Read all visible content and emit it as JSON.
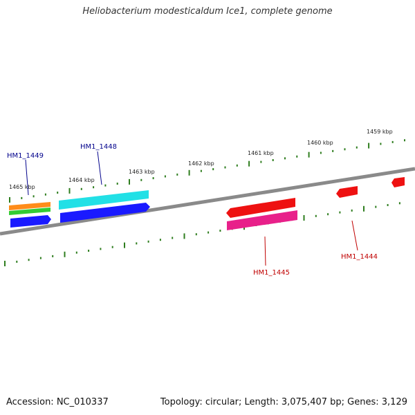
{
  "title": "Heliobacterium modesticaldum Ice1, complete genome",
  "footer": {
    "accession": "Accession: NC_010337",
    "summary": "Topology: circular; Length: 3,075,407 bp; Genes: 3,129"
  },
  "colors": {
    "backbone": "#8a8a8a",
    "tick": "#2e7d1e",
    "label_plus": "#00008b",
    "label_minus": "#c00000",
    "blue": "#1a1aff",
    "cyan": "#22e0e6",
    "orange": "#ff8c1a",
    "green": "#33cc33",
    "red": "#ee1111",
    "magenta": "#e8208a"
  },
  "kbp_labels": [
    {
      "kbp": 1465,
      "text": "1465 kbp"
    },
    {
      "kbp": 1464,
      "text": "1464 kbp"
    },
    {
      "kbp": 1463,
      "text": "1463 kbp"
    },
    {
      "kbp": 1462,
      "text": "1462 kbp"
    },
    {
      "kbp": 1461,
      "text": "1461 kbp"
    },
    {
      "kbp": 1460,
      "text": "1460 kbp"
    },
    {
      "kbp": 1459,
      "text": "1459 kbp"
    }
  ],
  "gene_labels": [
    {
      "text": "HM1_1449",
      "strand": "plus"
    },
    {
      "text": "HM1_1448",
      "strand": "plus"
    },
    {
      "text": "HM1_1445",
      "strand": "minus"
    },
    {
      "text": "HM1_1444",
      "strand": "minus"
    }
  ]
}
